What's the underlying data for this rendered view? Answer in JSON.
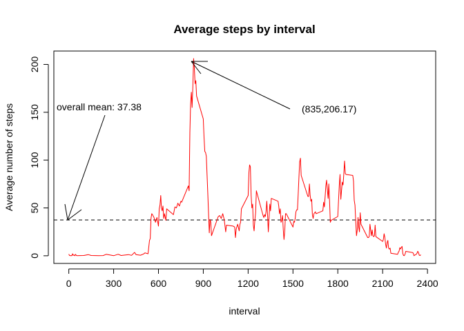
{
  "chart_data": {
    "type": "line",
    "title": "Average steps by interval",
    "xlabel": "interval",
    "ylabel": "Average number of steps",
    "xlim": [
      -100,
      2455
    ],
    "ylim": [
      -8,
      214
    ],
    "xticks": [
      0,
      300,
      600,
      900,
      1200,
      1500,
      1800,
      2100,
      2400
    ],
    "yticks": [
      0,
      50,
      100,
      150,
      200
    ],
    "grid": false,
    "legend": "none",
    "series": [
      {
        "color": "#ff0000",
        "points": [
          [
            0,
            1.7
          ],
          [
            5,
            0.3
          ],
          [
            10,
            0.1
          ],
          [
            15,
            0.2
          ],
          [
            20,
            0.1
          ],
          [
            25,
            2.1
          ],
          [
            30,
            0.5
          ],
          [
            35,
            0.9
          ],
          [
            40,
            0
          ],
          [
            45,
            1.5
          ],
          [
            50,
            0.3
          ],
          [
            55,
            0.1
          ],
          [
            100,
            0.3
          ],
          [
            130,
            1.2
          ],
          [
            150,
            0.3
          ],
          [
            200,
            0.1
          ],
          [
            230,
            0.2
          ],
          [
            250,
            1.5
          ],
          [
            300,
            0.1
          ],
          [
            330,
            1.6
          ],
          [
            350,
            0.3
          ],
          [
            400,
            1.2
          ],
          [
            420,
            0.4
          ],
          [
            440,
            3.5
          ],
          [
            450,
            1.2
          ],
          [
            480,
            0.6
          ],
          [
            500,
            1.9
          ],
          [
            510,
            3
          ],
          [
            520,
            2.5
          ],
          [
            530,
            2.1
          ],
          [
            540,
            16
          ],
          [
            545,
            18
          ],
          [
            550,
            39
          ],
          [
            555,
            44
          ],
          [
            560,
            43
          ],
          [
            570,
            40
          ],
          [
            580,
            35
          ],
          [
            590,
            40
          ],
          [
            600,
            31
          ],
          [
            605,
            49
          ],
          [
            610,
            53
          ],
          [
            615,
            63
          ],
          [
            620,
            50
          ],
          [
            625,
            47
          ],
          [
            630,
            52
          ],
          [
            635,
            39
          ],
          [
            640,
            44
          ],
          [
            650,
            37
          ],
          [
            655,
            49
          ],
          [
            700,
            43
          ],
          [
            710,
            51
          ],
          [
            720,
            50
          ],
          [
            730,
            55
          ],
          [
            740,
            52
          ],
          [
            750,
            57
          ],
          [
            755,
            56
          ],
          [
            800,
            73
          ],
          [
            805,
            68
          ],
          [
            810,
            129
          ],
          [
            815,
            158
          ],
          [
            820,
            171
          ],
          [
            825,
            155
          ],
          [
            830,
            177
          ],
          [
            835,
            206.17
          ],
          [
            840,
            196
          ],
          [
            845,
            180
          ],
          [
            850,
            183
          ],
          [
            855,
            167
          ],
          [
            900,
            143
          ],
          [
            905,
            124
          ],
          [
            910,
            109
          ],
          [
            915,
            108
          ],
          [
            920,
            104
          ],
          [
            930,
            66
          ],
          [
            940,
            24
          ],
          [
            945,
            38
          ],
          [
            950,
            35
          ],
          [
            955,
            21
          ],
          [
            1000,
            41
          ],
          [
            1010,
            42
          ],
          [
            1020,
            39
          ],
          [
            1030,
            44
          ],
          [
            1040,
            38
          ],
          [
            1050,
            25
          ],
          [
            1055,
            32
          ],
          [
            1100,
            31
          ],
          [
            1110,
            30
          ],
          [
            1115,
            19
          ],
          [
            1120,
            28
          ],
          [
            1130,
            33
          ],
          [
            1140,
            26
          ],
          [
            1145,
            33
          ],
          [
            1150,
            35
          ],
          [
            1155,
            49
          ],
          [
            1200,
            63
          ],
          [
            1205,
            87
          ],
          [
            1210,
            95
          ],
          [
            1215,
            93
          ],
          [
            1220,
            63
          ],
          [
            1225,
            50
          ],
          [
            1230,
            54
          ],
          [
            1235,
            32
          ],
          [
            1240,
            26
          ],
          [
            1245,
            37
          ],
          [
            1250,
            45
          ],
          [
            1255,
            68
          ],
          [
            1300,
            42
          ],
          [
            1305,
            40
          ],
          [
            1310,
            43
          ],
          [
            1315,
            41
          ],
          [
            1320,
            46
          ],
          [
            1325,
            57
          ],
          [
            1330,
            43
          ],
          [
            1335,
            25
          ],
          [
            1340,
            40
          ],
          [
            1345,
            54
          ],
          [
            1350,
            47
          ],
          [
            1355,
            60
          ],
          [
            1400,
            57
          ],
          [
            1405,
            52
          ],
          [
            1410,
            44
          ],
          [
            1415,
            49
          ],
          [
            1420,
            35
          ],
          [
            1425,
            37
          ],
          [
            1430,
            42
          ],
          [
            1435,
            28
          ],
          [
            1440,
            17
          ],
          [
            1445,
            26
          ],
          [
            1450,
            44
          ],
          [
            1455,
            44
          ],
          [
            1500,
            30
          ],
          [
            1505,
            36
          ],
          [
            1510,
            35
          ],
          [
            1515,
            39
          ],
          [
            1520,
            46
          ],
          [
            1525,
            48
          ],
          [
            1530,
            48
          ],
          [
            1535,
            65
          ],
          [
            1540,
            83
          ],
          [
            1545,
            98
          ],
          [
            1550,
            102
          ],
          [
            1555,
            84
          ],
          [
            1600,
            62
          ],
          [
            1605,
            62
          ],
          [
            1610,
            75
          ],
          [
            1615,
            63
          ],
          [
            1620,
            57
          ],
          [
            1625,
            59
          ],
          [
            1630,
            43
          ],
          [
            1635,
            39
          ],
          [
            1640,
            44
          ],
          [
            1645,
            45
          ],
          [
            1650,
            46
          ],
          [
            1655,
            44
          ],
          [
            1700,
            47
          ],
          [
            1705,
            56
          ],
          [
            1710,
            51
          ],
          [
            1715,
            61
          ],
          [
            1720,
            73
          ],
          [
            1725,
            79
          ],
          [
            1730,
            69
          ],
          [
            1735,
            60
          ],
          [
            1740,
            75
          ],
          [
            1745,
            57
          ],
          [
            1750,
            35
          ],
          [
            1755,
            37
          ],
          [
            1800,
            41
          ],
          [
            1805,
            58
          ],
          [
            1810,
            74
          ],
          [
            1815,
            85
          ],
          [
            1820,
            59
          ],
          [
            1825,
            68
          ],
          [
            1830,
            77
          ],
          [
            1835,
            74
          ],
          [
            1840,
            85
          ],
          [
            1845,
            99
          ],
          [
            1850,
            86
          ],
          [
            1855,
            85
          ],
          [
            1900,
            84
          ],
          [
            1905,
            78
          ],
          [
            1910,
            58
          ],
          [
            1915,
            53
          ],
          [
            1920,
            36
          ],
          [
            1925,
            21
          ],
          [
            1930,
            27
          ],
          [
            1935,
            40
          ],
          [
            1940,
            30
          ],
          [
            1945,
            25
          ],
          [
            1950,
            45
          ],
          [
            1955,
            33
          ],
          [
            2000,
            19
          ],
          [
            2005,
            19
          ],
          [
            2010,
            20
          ],
          [
            2015,
            33
          ],
          [
            2020,
            27
          ],
          [
            2025,
            21
          ],
          [
            2030,
            27
          ],
          [
            2035,
            21
          ],
          [
            2040,
            20
          ],
          [
            2045,
            21
          ],
          [
            2050,
            32
          ],
          [
            2055,
            20
          ],
          [
            2100,
            15
          ],
          [
            2105,
            17
          ],
          [
            2110,
            23
          ],
          [
            2115,
            19
          ],
          [
            2120,
            12
          ],
          [
            2125,
            8
          ],
          [
            2130,
            14
          ],
          [
            2135,
            16
          ],
          [
            2140,
            8
          ],
          [
            2145,
            7
          ],
          [
            2150,
            8
          ],
          [
            2155,
            2.6
          ],
          [
            2200,
            1.5
          ],
          [
            2205,
            3.7
          ],
          [
            2210,
            4.8
          ],
          [
            2215,
            8.5
          ],
          [
            2220,
            7.1
          ],
          [
            2225,
            8.7
          ],
          [
            2230,
            9.8
          ],
          [
            2235,
            2.2
          ],
          [
            2240,
            0.3
          ],
          [
            2245,
            0.1
          ],
          [
            2250,
            1.6
          ],
          [
            2255,
            4.6
          ],
          [
            2300,
            3.3
          ],
          [
            2305,
            2.8
          ],
          [
            2310,
            0
          ],
          [
            2315,
            0.8
          ],
          [
            2320,
            1
          ],
          [
            2325,
            1.6
          ],
          [
            2330,
            2.6
          ],
          [
            2335,
            4.7
          ],
          [
            2340,
            3.3
          ],
          [
            2345,
            0.6
          ],
          [
            2350,
            0.2
          ],
          [
            2355,
            1.1
          ]
        ]
      }
    ],
    "reference_line": {
      "y": 37.38,
      "style": "dashed",
      "color": "#000000"
    },
    "annotations": [
      {
        "text": "overall mean:  37.38",
        "points_to": [
          0,
          37.38
        ]
      },
      {
        "text": "(835,206.17)",
        "points_to": [
          835,
          206.17
        ]
      }
    ]
  }
}
